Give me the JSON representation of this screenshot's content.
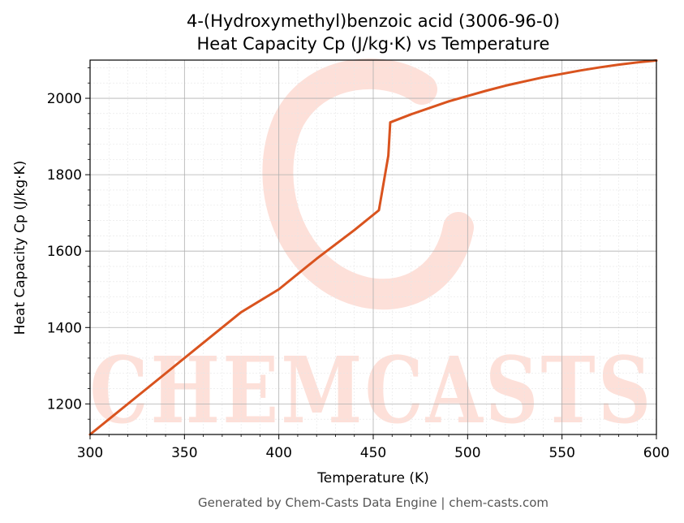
{
  "chart_data": {
    "type": "line",
    "title_line1": "4-(Hydroxymethyl)benzoic acid (3006-96-0)",
    "title_line2": "Heat Capacity Cp (J/kg·K) vs Temperature",
    "xlabel": "Temperature (K)",
    "ylabel": "Heat Capacity Cp (J/kg·K)",
    "xlim": [
      300,
      600
    ],
    "ylim": [
      1120,
      2100
    ],
    "xticks": [
      300,
      350,
      400,
      450,
      500,
      550,
      600
    ],
    "yticks": [
      1200,
      1400,
      1600,
      1800,
      2000
    ],
    "grid": true,
    "series": [
      {
        "color": "#d9531e",
        "points": [
          [
            300,
            1120
          ],
          [
            320,
            1200
          ],
          [
            340,
            1280
          ],
          [
            360,
            1360
          ],
          [
            380,
            1440
          ],
          [
            400,
            1500
          ],
          [
            420,
            1580
          ],
          [
            440,
            1655
          ],
          [
            453,
            1707
          ],
          [
            458,
            1850
          ],
          [
            459,
            1937
          ],
          [
            470,
            1958
          ],
          [
            480,
            1975
          ],
          [
            490,
            1992
          ],
          [
            500,
            2006
          ],
          [
            510,
            2020
          ],
          [
            520,
            2033
          ],
          [
            530,
            2044
          ],
          [
            540,
            2055
          ],
          [
            550,
            2064
          ],
          [
            560,
            2073
          ],
          [
            570,
            2081
          ],
          [
            580,
            2088
          ],
          [
            590,
            2094
          ],
          [
            600,
            2099
          ]
        ]
      }
    ]
  },
  "watermark": {
    "text": "CHEMCASTS",
    "color": "#fde0d9"
  },
  "footer": "Generated by Chem-Casts Data Engine | chem-casts.com"
}
